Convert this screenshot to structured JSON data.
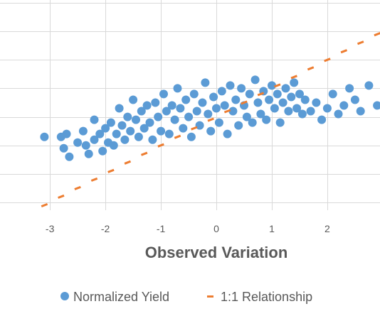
{
  "chart_data": {
    "type": "scatter",
    "title": "",
    "xlabel": "Observed Variation",
    "ylabel": "",
    "xlim": [
      -3.9,
      2.95
    ],
    "ylim": [
      -3.25,
      4.1
    ],
    "x_ticks": [
      -3,
      -2,
      -1,
      0,
      1,
      2
    ],
    "y_ticks": [
      -3,
      -2,
      -1,
      0,
      1,
      2,
      3,
      4
    ],
    "grid": true,
    "legend_position": "bottom",
    "series": [
      {
        "name": "Normalized Yield",
        "color": "#5B9BD5",
        "marker": "circle",
        "points": [
          [
            -3.1,
            -0.7
          ],
          [
            -2.8,
            -0.7
          ],
          [
            -2.7,
            -0.6
          ],
          [
            -2.75,
            -1.1
          ],
          [
            -2.65,
            -1.4
          ],
          [
            -2.5,
            -0.9
          ],
          [
            -2.4,
            -0.5
          ],
          [
            -2.35,
            -1.0
          ],
          [
            -2.3,
            -1.3
          ],
          [
            -2.2,
            -0.8
          ],
          [
            -2.2,
            -0.1
          ],
          [
            -2.1,
            -0.6
          ],
          [
            -2.05,
            -1.2
          ],
          [
            -2.0,
            -0.4
          ],
          [
            -1.95,
            -0.9
          ],
          [
            -1.9,
            -0.2
          ],
          [
            -1.85,
            -1.0
          ],
          [
            -1.8,
            -0.6
          ],
          [
            -1.75,
            0.3
          ],
          [
            -1.7,
            -0.3
          ],
          [
            -1.65,
            -0.8
          ],
          [
            -1.6,
            0.0
          ],
          [
            -1.55,
            -0.5
          ],
          [
            -1.5,
            0.6
          ],
          [
            -1.45,
            -0.1
          ],
          [
            -1.4,
            -0.7
          ],
          [
            -1.35,
            0.2
          ],
          [
            -1.3,
            -0.4
          ],
          [
            -1.25,
            0.4
          ],
          [
            -1.2,
            -0.2
          ],
          [
            -1.15,
            -0.8
          ],
          [
            -1.1,
            0.5
          ],
          [
            -1.05,
            0.0
          ],
          [
            -1.0,
            -0.5
          ],
          [
            -0.95,
            0.8
          ],
          [
            -0.9,
            0.2
          ],
          [
            -0.85,
            -0.6
          ],
          [
            -0.8,
            0.4
          ],
          [
            -0.75,
            -0.1
          ],
          [
            -0.7,
            1.0
          ],
          [
            -0.65,
            0.3
          ],
          [
            -0.6,
            -0.4
          ],
          [
            -0.55,
            0.6
          ],
          [
            -0.5,
            0.0
          ],
          [
            -0.45,
            -0.7
          ],
          [
            -0.4,
            0.8
          ],
          [
            -0.35,
            0.2
          ],
          [
            -0.3,
            -0.3
          ],
          [
            -0.25,
            0.5
          ],
          [
            -0.2,
            1.2
          ],
          [
            -0.15,
            0.1
          ],
          [
            -0.1,
            -0.5
          ],
          [
            -0.05,
            0.7
          ],
          [
            0.0,
            0.3
          ],
          [
            0.05,
            -0.2
          ],
          [
            0.1,
            0.9
          ],
          [
            0.15,
            0.4
          ],
          [
            0.2,
            -0.6
          ],
          [
            0.25,
            1.1
          ],
          [
            0.3,
            0.2
          ],
          [
            0.35,
            0.6
          ],
          [
            0.4,
            -0.3
          ],
          [
            0.45,
            1.0
          ],
          [
            0.5,
            0.4
          ],
          [
            0.55,
            0.0
          ],
          [
            0.6,
            0.8
          ],
          [
            0.65,
            -0.2
          ],
          [
            0.7,
            1.3
          ],
          [
            0.75,
            0.5
          ],
          [
            0.8,
            0.1
          ],
          [
            0.85,
            0.9
          ],
          [
            0.9,
            -0.1
          ],
          [
            0.95,
            0.6
          ],
          [
            1.0,
            1.1
          ],
          [
            1.05,
            0.3
          ],
          [
            1.1,
            0.8
          ],
          [
            1.15,
            -0.2
          ],
          [
            1.2,
            0.5
          ],
          [
            1.25,
            1.0
          ],
          [
            1.3,
            0.2
          ],
          [
            1.35,
            0.7
          ],
          [
            1.4,
            1.2
          ],
          [
            1.45,
            0.3
          ],
          [
            1.5,
            0.8
          ],
          [
            1.55,
            0.1
          ],
          [
            1.6,
            0.6
          ],
          [
            1.7,
            0.2
          ],
          [
            1.8,
            0.5
          ],
          [
            1.9,
            -0.1
          ],
          [
            2.0,
            0.3
          ],
          [
            2.1,
            0.8
          ],
          [
            2.2,
            0.1
          ],
          [
            2.3,
            0.4
          ],
          [
            2.4,
            1.0
          ],
          [
            2.5,
            0.6
          ],
          [
            2.6,
            0.2
          ],
          [
            2.75,
            1.1
          ],
          [
            2.9,
            0.4
          ]
        ]
      },
      {
        "name": "1:1 Relationship",
        "color": "#ED7D31",
        "marker": "dash",
        "x": [
          -3.1,
          -2.8,
          -2.5,
          -2.2,
          -1.9,
          -1.6,
          -1.3,
          -1.0,
          -0.7,
          -0.4,
          -0.1,
          0.2,
          0.5,
          0.8,
          1.1,
          1.4,
          1.7,
          2.0,
          2.3,
          2.6,
          2.9
        ],
        "y": [
          -3.1,
          -2.8,
          -2.5,
          -2.2,
          -1.9,
          -1.6,
          -1.3,
          -1.0,
          -0.7,
          -0.4,
          -0.1,
          0.2,
          0.5,
          0.8,
          1.1,
          1.4,
          1.7,
          2.0,
          2.3,
          2.6,
          2.9
        ]
      }
    ]
  },
  "legend": {
    "items": [
      {
        "label": "Normalized Yield",
        "color": "#5B9BD5",
        "marker": "circle"
      },
      {
        "label": "1:1 Relationship",
        "color": "#ED7D31",
        "marker": "dash"
      }
    ]
  }
}
